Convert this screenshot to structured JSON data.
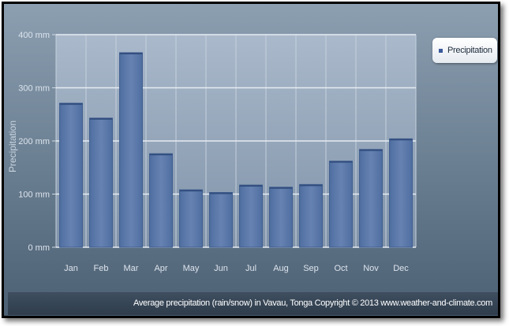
{
  "chart_data": {
    "type": "bar",
    "categories": [
      "Jan",
      "Feb",
      "Mar",
      "Apr",
      "May",
      "Jun",
      "Jul",
      "Aug",
      "Sep",
      "Oct",
      "Nov",
      "Dec"
    ],
    "series": [
      {
        "name": "Precipitation",
        "values": [
          271,
          243,
          366,
          176,
          108,
          103,
          117,
          113,
          118,
          162,
          184,
          204
        ]
      }
    ],
    "ylabel": "Precipitation",
    "ylim": [
      0,
      400
    ],
    "yticks": [
      "0 mm",
      "100 mm",
      "200 mm",
      "300 mm",
      "400 mm"
    ],
    "grid": true,
    "legend_position": "top-right"
  },
  "legend": {
    "label": "Precipitation"
  },
  "footer": {
    "text": "Average precipitation (rain/snow) in Vavau, Tonga   Copyright © 2013 www.weather-and-climate.com"
  },
  "colors": {
    "bar": "#5a78a8",
    "bar_edge": "#3e5c8e",
    "plot_bg_top": "#a9b9cc",
    "plot_bg_bottom": "#8295ab",
    "legend_swatch": "#3b5a9a"
  }
}
